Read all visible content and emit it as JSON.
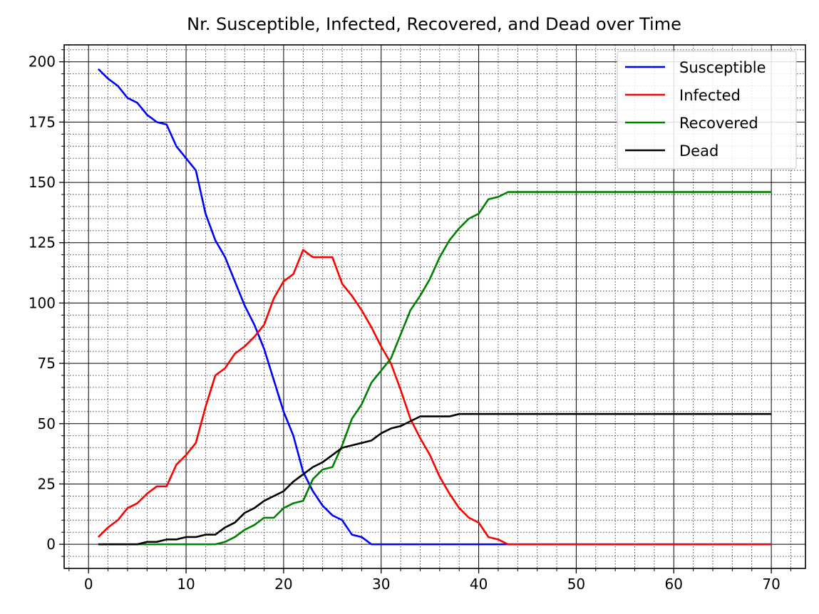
{
  "chart_data": {
    "type": "line",
    "title": "Nr. Susceptible, Infected, Recovered, and Dead over Time",
    "xlabel": "",
    "ylabel": "",
    "xlim": [
      -2.5,
      73.5
    ],
    "ylim": [
      -10,
      207
    ],
    "xticks": [
      0,
      10,
      20,
      30,
      40,
      50,
      60,
      70
    ],
    "yticks": [
      0,
      25,
      50,
      75,
      100,
      125,
      150,
      175,
      200
    ],
    "grid": "major solid, minor dotted",
    "legend_position": "top-right",
    "x": [
      1,
      2,
      3,
      4,
      5,
      6,
      7,
      8,
      9,
      10,
      11,
      12,
      13,
      14,
      15,
      16,
      17,
      18,
      19,
      20,
      21,
      22,
      23,
      24,
      25,
      26,
      27,
      28,
      29,
      30,
      31,
      32,
      33,
      34,
      35,
      36,
      37,
      38,
      39,
      40,
      41,
      42,
      43,
      44,
      45,
      46,
      47,
      48,
      49,
      50,
      51,
      52,
      53,
      54,
      55,
      56,
      57,
      58,
      59,
      60,
      61,
      62,
      63,
      64,
      65,
      66,
      67,
      68,
      69,
      70
    ],
    "series": [
      {
        "name": "Susceptible",
        "color": "#0000ff",
        "values": [
          197,
          193,
          190,
          185,
          183,
          178,
          175,
          174,
          165,
          160,
          155,
          137,
          126,
          119,
          109,
          99,
          91,
          81,
          68,
          55,
          45,
          30,
          22,
          16,
          12,
          10,
          4,
          3,
          0,
          0,
          0,
          0,
          0,
          0,
          0,
          0,
          0,
          0,
          0,
          0,
          0,
          0,
          0,
          0,
          0,
          0,
          0,
          0,
          0,
          0,
          0,
          0,
          0,
          0,
          0,
          0,
          0,
          0,
          0,
          0,
          0,
          0,
          0,
          0,
          0,
          0,
          0,
          0,
          0,
          0
        ]
      },
      {
        "name": "Infected",
        "color": "#ff0000",
        "values": [
          3,
          7,
          10,
          15,
          17,
          21,
          24,
          24,
          33,
          37,
          42,
          57,
          70,
          73,
          79,
          82,
          86,
          91,
          102,
          109,
          112,
          122,
          119,
          119,
          119,
          108,
          103,
          97,
          90,
          82,
          75,
          64,
          52,
          44,
          37,
          28,
          21,
          15,
          11,
          9,
          3,
          2,
          0,
          0,
          0,
          0,
          0,
          0,
          0,
          0,
          0,
          0,
          0,
          0,
          0,
          0,
          0,
          0,
          0,
          0,
          0,
          0,
          0,
          0,
          0,
          0,
          0,
          0,
          0,
          0
        ]
      },
      {
        "name": "Recovered",
        "color": "#008000",
        "values": [
          0,
          0,
          0,
          0,
          0,
          0,
          0,
          0,
          0,
          0,
          0,
          0,
          0,
          1,
          3,
          6,
          8,
          11,
          11,
          15,
          17,
          18,
          27,
          31,
          32,
          41,
          52,
          58,
          67,
          72,
          77,
          87,
          97,
          103,
          110,
          119,
          126,
          131,
          135,
          137,
          143,
          144,
          146,
          146,
          146,
          146,
          146,
          146,
          146,
          146,
          146,
          146,
          146,
          146,
          146,
          146,
          146,
          146,
          146,
          146,
          146,
          146,
          146,
          146,
          146,
          146,
          146,
          146,
          146,
          146
        ]
      },
      {
        "name": "Dead",
        "color": "#000000",
        "values": [
          0,
          0,
          0,
          0,
          0,
          1,
          1,
          2,
          2,
          3,
          3,
          4,
          4,
          7,
          9,
          13,
          15,
          18,
          20,
          22,
          26,
          29,
          32,
          34,
          37,
          40,
          41,
          42,
          43,
          46,
          48,
          49,
          51,
          53,
          53,
          53,
          53,
          54,
          54,
          54,
          54,
          54,
          54,
          54,
          54,
          54,
          54,
          54,
          54,
          54,
          54,
          54,
          54,
          54,
          54,
          54,
          54,
          54,
          54,
          54,
          54,
          54,
          54,
          54,
          54,
          54,
          54,
          54,
          54,
          54
        ]
      }
    ]
  }
}
